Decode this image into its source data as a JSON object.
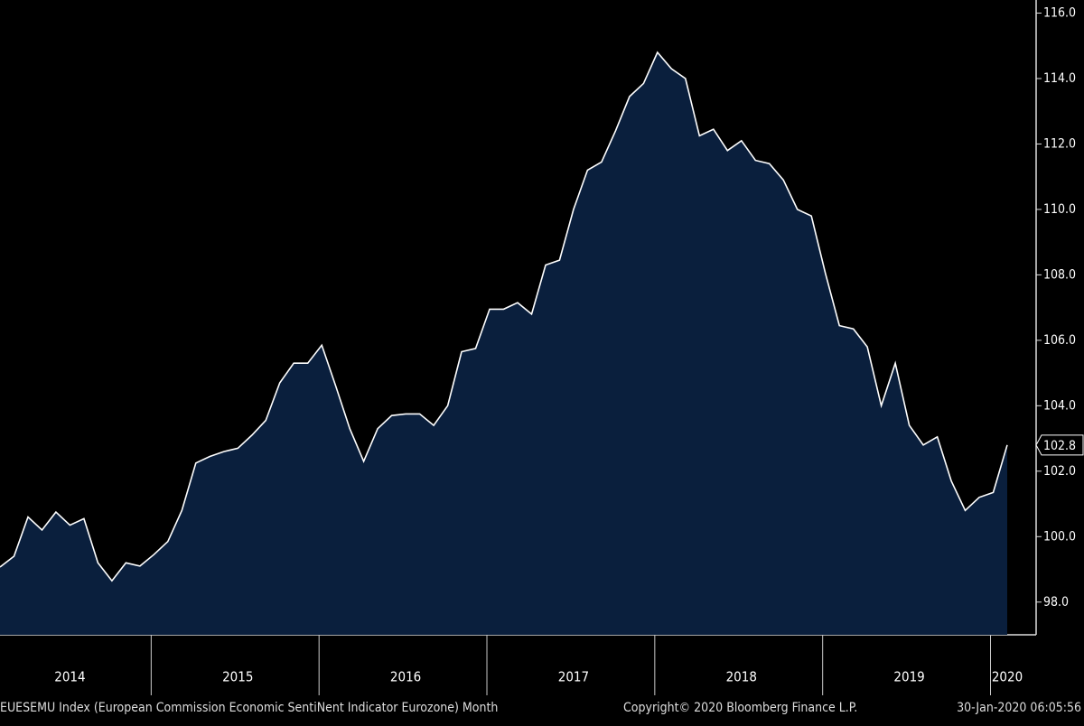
{
  "chart_data": {
    "type": "area",
    "categories": [
      null,
      null,
      null,
      null,
      null,
      "2014",
      null,
      null,
      null,
      null,
      null,
      null,
      null,
      null,
      null,
      null,
      null,
      "2015",
      null,
      null,
      null,
      null,
      null,
      null,
      null,
      null,
      null,
      null,
      null,
      "2016",
      null,
      null,
      null,
      null,
      null,
      null,
      null,
      null,
      null,
      null,
      null,
      "2017",
      null,
      null,
      null,
      null,
      null,
      null,
      null,
      null,
      null,
      null,
      null,
      "2018",
      null,
      null,
      null,
      null,
      null,
      null,
      null,
      null,
      null,
      null,
      null,
      "2019",
      null,
      null,
      null,
      null,
      null,
      null,
      "2020"
    ],
    "values": [
      99.07,
      99.4,
      100.6,
      100.2,
      100.75,
      100.35,
      100.55,
      99.2,
      98.65,
      99.2,
      99.1,
      99.45,
      99.85,
      100.8,
      102.25,
      102.45,
      102.6,
      102.7,
      103.1,
      103.55,
      104.7,
      105.3,
      105.3,
      105.85,
      104.6,
      103.3,
      102.3,
      103.3,
      103.7,
      103.75,
      103.75,
      103.4,
      104.0,
      105.65,
      105.75,
      106.95,
      106.95,
      107.15,
      106.8,
      108.3,
      108.45,
      110.0,
      111.2,
      111.45,
      112.4,
      113.45,
      113.85,
      114.8,
      114.3,
      114.0,
      112.25,
      112.45,
      111.8,
      112.1,
      111.5,
      111.4,
      110.9,
      110.0,
      109.8,
      108.05,
      106.45,
      106.35,
      105.8,
      104.0,
      105.3,
      103.4,
      102.8,
      103.05,
      101.7,
      100.8,
      101.2,
      101.35,
      102.8
    ],
    "color": "#0a1f3d",
    "line_color": "#ffffff",
    "ylim": [
      97,
      116.4
    ],
    "yticks": [
      {
        "value": 98,
        "label": "98.0"
      },
      {
        "value": 100,
        "label": "100.0"
      },
      {
        "value": 102,
        "label": "102.0"
      },
      {
        "value": 104,
        "label": "104.0"
      },
      {
        "value": 106,
        "label": "106.0"
      },
      {
        "value": 108,
        "label": "108.0"
      },
      {
        "value": 110,
        "label": "110.0"
      },
      {
        "value": 112,
        "label": "112.0"
      },
      {
        "value": 114,
        "label": "114.0"
      },
      {
        "value": 116,
        "label": "116.0"
      }
    ],
    "footer_left": "EUESEMU Index (European Commission Economic SentiNent Indicator Eurozone)  Month",
    "footer_center": "Copyright© 2020 Bloomberg Finance L.P.",
    "footer_right": "30-Jan-2020 06:05:56"
  }
}
